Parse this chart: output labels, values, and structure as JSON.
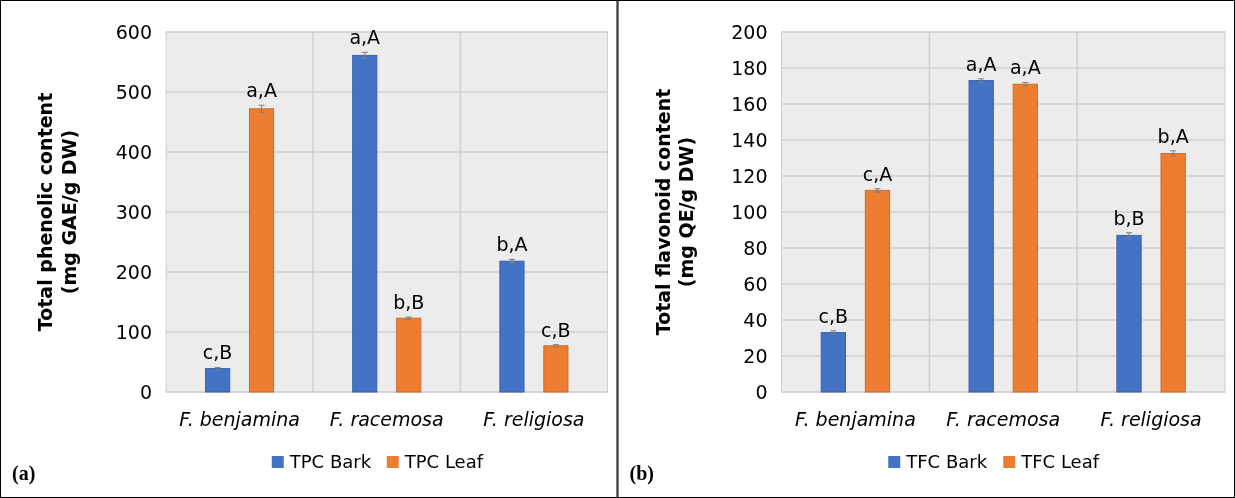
{
  "chart_data": [
    {
      "type": "bar",
      "ylabel": "Total phenolic content\n(mg GAE/g DW)",
      "categories": [
        "F. benjamina",
        "F. racemosa",
        "F. religiosa"
      ],
      "series": [
        {
          "name": "TPC Bark",
          "color": "#4472c4",
          "values": [
            39,
            561,
            218
          ],
          "errors": [
            2,
            5,
            3
          ]
        },
        {
          "name": "TPC Leaf",
          "color": "#ed7d31",
          "values": [
            472,
            123,
            77
          ],
          "errors": [
            6,
            2,
            2
          ]
        }
      ],
      "ylim": [
        0,
        600
      ],
      "yticks": [
        0,
        100,
        200,
        300,
        400,
        500,
        600
      ],
      "grid": true,
      "legend": "bottom",
      "annotations": [
        "c,B",
        "a,A",
        "a,A",
        "b,B",
        "b,A",
        "c,B",
        "(a)"
      ]
    },
    {
      "type": "bar",
      "ylabel": "Total flavonoid content\n(mg QE/g DW)",
      "categories": [
        "F. benjamina",
        "F. racemosa",
        "F. religiosa"
      ],
      "series": [
        {
          "name": "TFC Bark",
          "color": "#4472c4",
          "values": [
            33,
            173,
            87
          ],
          "errors": [
            1,
            1,
            1.5
          ]
        },
        {
          "name": "TFC Leaf",
          "color": "#ed7d31",
          "values": [
            112,
            171,
            132.5
          ],
          "errors": [
            1,
            1,
            1.5
          ]
        }
      ],
      "ylim": [
        0,
        200
      ],
      "yticks": [
        0,
        20,
        40,
        60,
        80,
        100,
        120,
        140,
        160,
        180,
        200
      ],
      "grid": true,
      "legend": "bottom",
      "annotations": [
        "c,B",
        "c,A",
        "a,A",
        "a,A",
        "b,B",
        "b,A",
        "(b)"
      ]
    }
  ]
}
